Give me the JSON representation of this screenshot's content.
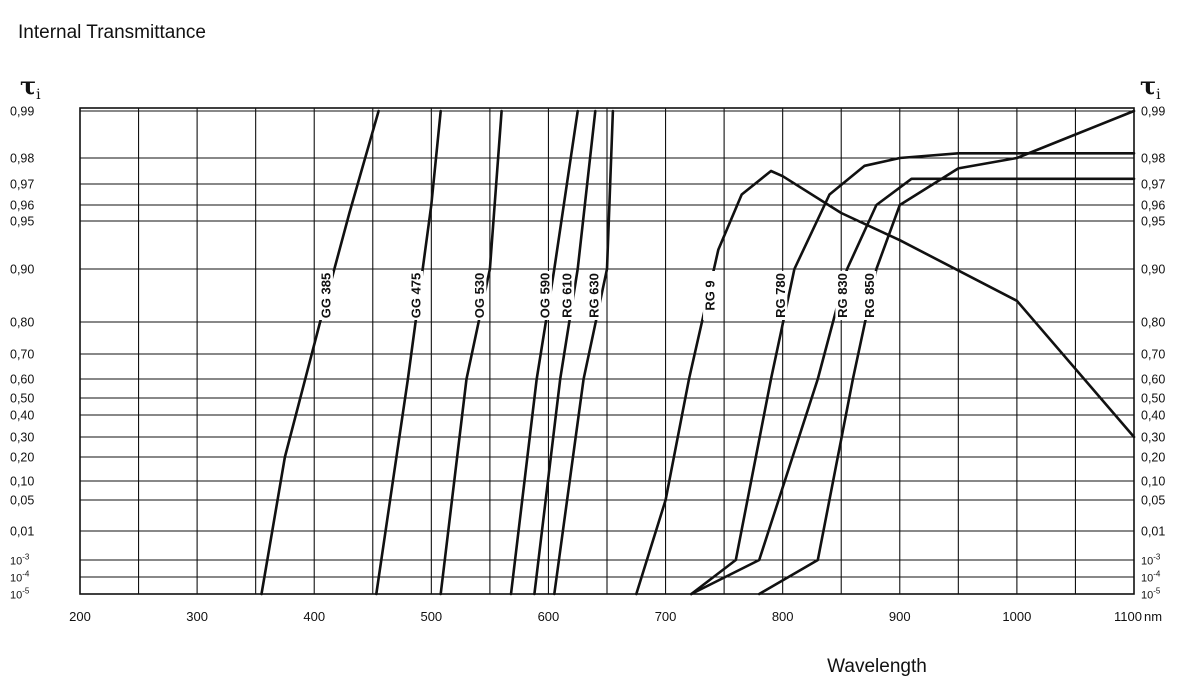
{
  "title": "Internal Transmittance",
  "chart_data": {
    "type": "line",
    "title": "Internal Transmittance",
    "ylabel_symbol": "τ",
    "ylabel_subscript": "i",
    "xlabel": "Wavelength",
    "x_unit": "nm",
    "xlim": [
      200,
      1100
    ],
    "x_ticks": [
      200,
      300,
      400,
      500,
      600,
      700,
      800,
      900,
      1000,
      1100
    ],
    "x_tick_labels": [
      "200",
      "300",
      "400",
      "500",
      "600",
      "700",
      "800",
      "900",
      "1000",
      "1100"
    ],
    "y_ticks": [
      {
        "value": 0.99,
        "label": "0,99"
      },
      {
        "value": 0.98,
        "label": "0,98"
      },
      {
        "value": 0.97,
        "label": "0,97"
      },
      {
        "value": 0.96,
        "label": "0,96"
      },
      {
        "value": 0.95,
        "label": "0,95"
      },
      {
        "value": 0.9,
        "label": "0,90"
      },
      {
        "value": 0.8,
        "label": "0,80"
      },
      {
        "value": 0.7,
        "label": "0,70"
      },
      {
        "value": 0.6,
        "label": "0,60"
      },
      {
        "value": 0.5,
        "label": "0,50"
      },
      {
        "value": 0.4,
        "label": "0,40"
      },
      {
        "value": 0.3,
        "label": "0,30"
      },
      {
        "value": 0.2,
        "label": "0,20"
      },
      {
        "value": 0.1,
        "label": "0,10"
      },
      {
        "value": 0.05,
        "label": "0,05"
      },
      {
        "value": 0.01,
        "label": "0,01"
      },
      {
        "value": 0.001,
        "label": "10",
        "exp": "-3"
      },
      {
        "value": 0.0001,
        "label": "10",
        "exp": "-4"
      },
      {
        "value": 1e-05,
        "label": "10",
        "exp": "-5"
      }
    ],
    "grid": true,
    "series": [
      {
        "name": "GG 385",
        "x": [
          355,
          375,
          405,
          430,
          455
        ],
        "y": [
          1e-05,
          0.2,
          0.8,
          0.955,
          0.99
        ]
      },
      {
        "name": "GG 475",
        "x": [
          453,
          480,
          500,
          508
        ],
        "y": [
          1e-05,
          0.6,
          0.96,
          0.99
        ]
      },
      {
        "name": "OG 530",
        "x": [
          508,
          530,
          550,
          560
        ],
        "y": [
          1e-05,
          0.6,
          0.9,
          0.99
        ]
      },
      {
        "name": "OG 590",
        "x": [
          568,
          590,
          605,
          625
        ],
        "y": [
          1e-05,
          0.6,
          0.9,
          0.99
        ]
      },
      {
        "name": "RG 610",
        "x": [
          588,
          610,
          625,
          640
        ],
        "y": [
          1e-05,
          0.6,
          0.9,
          0.99
        ]
      },
      {
        "name": "RG 630",
        "x": [
          605,
          630,
          650,
          655
        ],
        "y": [
          1e-05,
          0.6,
          0.9,
          0.99
        ]
      },
      {
        "name": "RG 9",
        "x": [
          675,
          700,
          720,
          745,
          765,
          790,
          800,
          850,
          900,
          1000,
          1100
        ],
        "y": [
          1e-05,
          0.05,
          0.6,
          0.92,
          0.965,
          0.975,
          0.973,
          0.955,
          0.93,
          0.84,
          0.3
        ]
      },
      {
        "name": "RG 780",
        "x": [
          722,
          760,
          790,
          810,
          840,
          870,
          900,
          950,
          1000,
          1100
        ],
        "y": [
          1e-05,
          0.001,
          0.6,
          0.9,
          0.965,
          0.977,
          0.98,
          0.981,
          0.981,
          0.981
        ]
      },
      {
        "name": "RG 830",
        "x": [
          722,
          780,
          830,
          855,
          880,
          910,
          950,
          1000,
          1100
        ],
        "y": [
          1e-05,
          0.001,
          0.6,
          0.9,
          0.96,
          0.972,
          0.972,
          0.972,
          0.972
        ]
      },
      {
        "name": "RG 850",
        "x": [
          780,
          830,
          860,
          880,
          900,
          950,
          1000,
          1050,
          1100
        ],
        "y": [
          1e-05,
          0.001,
          0.6,
          0.9,
          0.96,
          0.976,
          0.98,
          0.985,
          0.99
        ]
      }
    ],
    "series_labels": [
      {
        "name": "GG 385"
      },
      {
        "name": "GG 475"
      },
      {
        "name": "OG 530"
      },
      {
        "name": "OG 590"
      },
      {
        "name": "RG 610"
      },
      {
        "name": "RG 630"
      },
      {
        "name": "RG 9"
      },
      {
        "name": "RG 780"
      },
      {
        "name": "RG 830"
      },
      {
        "name": "RG 850"
      }
    ]
  }
}
